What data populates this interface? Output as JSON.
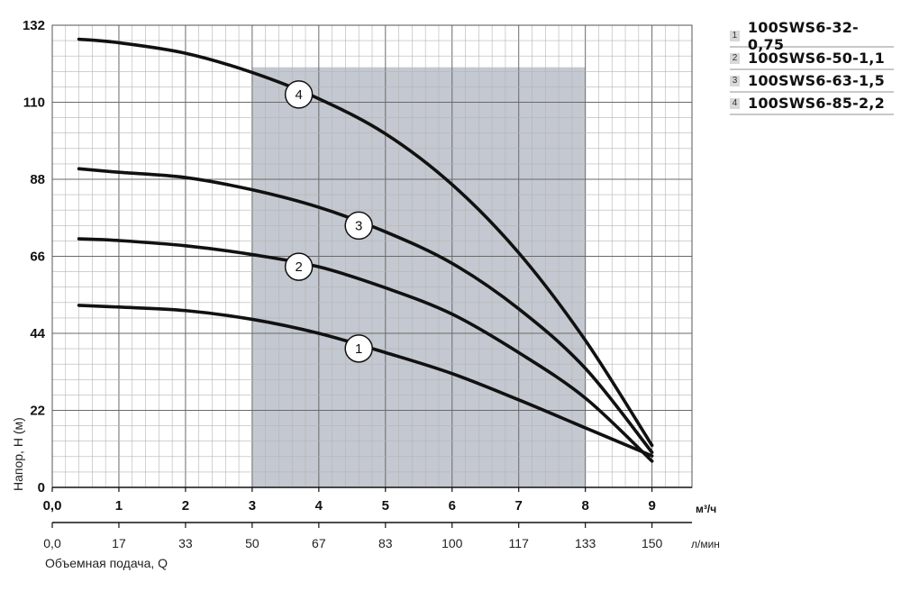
{
  "chart_data": {
    "type": "line",
    "title": "",
    "ylabel": "Напор, H (м)",
    "xlabel": "Объемная подача, Q",
    "xunit_primary": "м³/ч",
    "xunit_secondary": "л/мин",
    "xlim": [
      0,
      9.6
    ],
    "ylim": [
      0,
      132
    ],
    "y_ticks": [
      "0",
      "22",
      "44",
      "66",
      "88",
      "110",
      "132"
    ],
    "x_ticks_primary": [
      "0,0",
      "1",
      "2",
      "3",
      "4",
      "5",
      "6",
      "7",
      "8",
      "9"
    ],
    "x_ticks_secondary": [
      "0,0",
      "17",
      "33",
      "50",
      "67",
      "83",
      "100",
      "117",
      "133",
      "150"
    ],
    "grid": true,
    "legend_position": "top-right",
    "working_range": {
      "x": [
        3,
        8
      ],
      "color": "#c4c8d0"
    },
    "line_color": "#111111",
    "series": [
      {
        "name": "100SWS6-32-0,75",
        "label": "1",
        "x": [
          0.4,
          1,
          2,
          3,
          4,
          5,
          6,
          7,
          8,
          9
        ],
        "y": [
          52,
          51.5,
          50.5,
          48,
          44,
          38.5,
          32.5,
          25,
          17,
          9
        ]
      },
      {
        "name": "100SWS6-50-1,1",
        "label": "2",
        "x": [
          0.4,
          1,
          2,
          3,
          4,
          5,
          6,
          7,
          8,
          9
        ],
        "y": [
          71,
          70.5,
          69,
          66.5,
          63,
          57,
          49.5,
          38.5,
          25.5,
          7.5
        ]
      },
      {
        "name": "100SWS6-63-1,5",
        "label": "3",
        "x": [
          0.4,
          1,
          2,
          3,
          4,
          5,
          6,
          7,
          8,
          9
        ],
        "y": [
          91,
          90,
          88.5,
          85,
          80,
          73,
          64,
          51,
          34,
          10
        ]
      },
      {
        "name": "100SWS6-85-2,2",
        "label": "4",
        "x": [
          0.4,
          1,
          2,
          3,
          4,
          5,
          6,
          7,
          8,
          9
        ],
        "y": [
          128,
          127,
          124,
          118.5,
          111,
          101,
          86.5,
          67,
          42,
          12
        ]
      }
    ],
    "label_positions": [
      {
        "label": "1",
        "x": 4.6
      },
      {
        "label": "2",
        "x": 3.7
      },
      {
        "label": "3",
        "x": 4.6
      },
      {
        "label": "4",
        "x": 3.7
      }
    ]
  }
}
